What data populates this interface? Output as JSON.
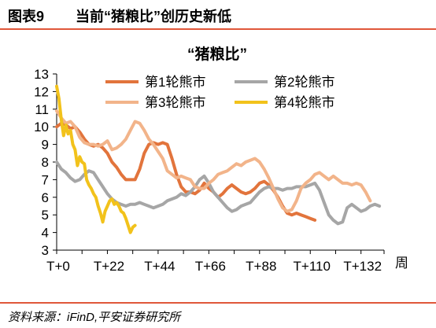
{
  "header": {
    "figure_number": "图表9",
    "title": "当前“猪粮比”创历史新低"
  },
  "footer": {
    "source": "资料来源：iFinD,平安证券研究所"
  },
  "chart_data": {
    "type": "line",
    "title": "“猪粮比”",
    "xlabel": "周",
    "ylabel": "",
    "ylim": [
      3,
      13
    ],
    "xlim": [
      0,
      142
    ],
    "yticks": [
      3,
      4,
      5,
      6,
      7,
      8,
      9,
      10,
      11,
      12,
      13
    ],
    "xticks": [
      0,
      22,
      44,
      66,
      88,
      110,
      132
    ],
    "xtick_labels": [
      "T+0",
      "T+22",
      "T+44",
      "T+66",
      "T+88",
      "T+110",
      "T+132"
    ],
    "grid": false,
    "legend_position": "top",
    "series": [
      {
        "name": "第1轮熊市",
        "color": "#e2743c",
        "points": [
          [
            0,
            10.0
          ],
          [
            2,
            10.2
          ],
          [
            4,
            10.1
          ],
          [
            6,
            9.9
          ],
          [
            8,
            10.0
          ],
          [
            10,
            9.7
          ],
          [
            12,
            9.3
          ],
          [
            14,
            9.0
          ],
          [
            16,
            8.9
          ],
          [
            18,
            9.0
          ],
          [
            20,
            8.8
          ],
          [
            22,
            8.5
          ],
          [
            24,
            8.0
          ],
          [
            26,
            7.7
          ],
          [
            28,
            7.3
          ],
          [
            30,
            7.0
          ],
          [
            32,
            7.0
          ],
          [
            34,
            7.0
          ],
          [
            36,
            7.6
          ],
          [
            38,
            8.5
          ],
          [
            40,
            9.0
          ],
          [
            42,
            9.1
          ],
          [
            44,
            9.0
          ],
          [
            46,
            9.1
          ],
          [
            48,
            9.0
          ],
          [
            50,
            8.2
          ],
          [
            52,
            7.3
          ],
          [
            54,
            6.6
          ],
          [
            56,
            6.3
          ],
          [
            58,
            6.3
          ],
          [
            60,
            6.2
          ],
          [
            62,
            6.4
          ],
          [
            64,
            6.8
          ],
          [
            66,
            6.5
          ],
          [
            68,
            6.3
          ],
          [
            70,
            6.0
          ],
          [
            72,
            6.2
          ],
          [
            74,
            6.5
          ],
          [
            76,
            6.7
          ],
          [
            78,
            6.5
          ],
          [
            80,
            6.3
          ],
          [
            82,
            6.2
          ],
          [
            84,
            6.3
          ],
          [
            86,
            6.5
          ],
          [
            88,
            6.8
          ],
          [
            90,
            6.9
          ],
          [
            92,
            6.7
          ],
          [
            94,
            6.4
          ],
          [
            96,
            6.0
          ],
          [
            98,
            5.5
          ],
          [
            100,
            5.1
          ],
          [
            102,
            5.0
          ],
          [
            104,
            5.1
          ],
          [
            106,
            5.0
          ],
          [
            108,
            4.9
          ],
          [
            110,
            4.8
          ],
          [
            112,
            4.7
          ]
        ]
      },
      {
        "name": "第2轮熊市",
        "color": "#a6a6a6",
        "points": [
          [
            0,
            8.0
          ],
          [
            2,
            7.6
          ],
          [
            4,
            7.4
          ],
          [
            6,
            7.1
          ],
          [
            8,
            6.9
          ],
          [
            10,
            7.0
          ],
          [
            12,
            7.3
          ],
          [
            14,
            7.5
          ],
          [
            16,
            7.4
          ],
          [
            18,
            7.0
          ],
          [
            20,
            6.6
          ],
          [
            22,
            6.2
          ],
          [
            24,
            5.9
          ],
          [
            26,
            5.7
          ],
          [
            28,
            5.6
          ],
          [
            30,
            5.5
          ],
          [
            32,
            5.6
          ],
          [
            34,
            5.6
          ],
          [
            36,
            5.7
          ],
          [
            38,
            5.6
          ],
          [
            40,
            5.5
          ],
          [
            42,
            5.4
          ],
          [
            44,
            5.5
          ],
          [
            46,
            5.6
          ],
          [
            48,
            5.8
          ],
          [
            50,
            5.9
          ],
          [
            52,
            6.0
          ],
          [
            54,
            6.2
          ],
          [
            56,
            6.1
          ],
          [
            58,
            6.3
          ],
          [
            60,
            6.6
          ],
          [
            62,
            7.0
          ],
          [
            64,
            7.2
          ],
          [
            66,
            6.8
          ],
          [
            68,
            6.3
          ],
          [
            70,
            6.0
          ],
          [
            72,
            5.7
          ],
          [
            74,
            5.4
          ],
          [
            76,
            5.2
          ],
          [
            78,
            5.3
          ],
          [
            80,
            5.5
          ],
          [
            82,
            5.6
          ],
          [
            84,
            5.7
          ],
          [
            86,
            6.0
          ],
          [
            88,
            6.3
          ],
          [
            90,
            6.5
          ],
          [
            92,
            6.6
          ],
          [
            94,
            6.5
          ],
          [
            96,
            6.5
          ],
          [
            98,
            6.4
          ],
          [
            100,
            6.5
          ],
          [
            102,
            6.5
          ],
          [
            104,
            6.6
          ],
          [
            106,
            6.6
          ],
          [
            108,
            6.6
          ],
          [
            110,
            6.7
          ],
          [
            112,
            6.8
          ],
          [
            114,
            6.4
          ],
          [
            116,
            5.7
          ],
          [
            118,
            5.0
          ],
          [
            120,
            4.7
          ],
          [
            122,
            4.5
          ],
          [
            124,
            4.6
          ],
          [
            126,
            5.4
          ],
          [
            128,
            5.6
          ],
          [
            130,
            5.4
          ],
          [
            132,
            5.2
          ],
          [
            134,
            5.3
          ],
          [
            136,
            5.5
          ],
          [
            138,
            5.6
          ],
          [
            140,
            5.5
          ]
        ]
      },
      {
        "name": "第3轮熊市",
        "color": "#f2b48a",
        "points": [
          [
            0,
            10.9
          ],
          [
            2,
            10.5
          ],
          [
            4,
            10.2
          ],
          [
            6,
            10.3
          ],
          [
            8,
            10.0
          ],
          [
            10,
            9.4
          ],
          [
            12,
            9.1
          ],
          [
            14,
            9.0
          ],
          [
            16,
            9.0
          ],
          [
            18,
            8.9
          ],
          [
            20,
            9.0
          ],
          [
            22,
            9.2
          ],
          [
            24,
            8.7
          ],
          [
            26,
            8.8
          ],
          [
            28,
            9.0
          ],
          [
            30,
            9.3
          ],
          [
            32,
            9.8
          ],
          [
            34,
            10.3
          ],
          [
            36,
            10.2
          ],
          [
            38,
            9.8
          ],
          [
            40,
            9.3
          ],
          [
            42,
            9.0
          ],
          [
            44,
            8.6
          ],
          [
            46,
            8.2
          ],
          [
            48,
            7.5
          ],
          [
            50,
            7.3
          ],
          [
            52,
            7.1
          ],
          [
            54,
            7.2
          ],
          [
            56,
            7.1
          ],
          [
            58,
            7.0
          ],
          [
            60,
            6.6
          ],
          [
            62,
            6.5
          ],
          [
            64,
            6.5
          ],
          [
            66,
            6.8
          ],
          [
            68,
            7.0
          ],
          [
            70,
            7.3
          ],
          [
            72,
            7.4
          ],
          [
            74,
            7.5
          ],
          [
            76,
            7.7
          ],
          [
            78,
            7.9
          ],
          [
            80,
            7.8
          ],
          [
            82,
            8.0
          ],
          [
            84,
            8.1
          ],
          [
            86,
            8.2
          ],
          [
            88,
            8.0
          ],
          [
            90,
            7.6
          ],
          [
            92,
            7.1
          ],
          [
            94,
            6.5
          ],
          [
            96,
            5.9
          ],
          [
            98,
            5.4
          ],
          [
            100,
            5.2
          ],
          [
            102,
            5.3
          ],
          [
            104,
            5.8
          ],
          [
            106,
            6.5
          ],
          [
            108,
            6.8
          ],
          [
            110,
            7.0
          ],
          [
            112,
            7.3
          ],
          [
            114,
            7.4
          ],
          [
            116,
            7.2
          ],
          [
            118,
            7.0
          ],
          [
            120,
            7.2
          ],
          [
            122,
            7.0
          ],
          [
            124,
            6.8
          ],
          [
            126,
            6.8
          ],
          [
            128,
            6.7
          ],
          [
            130,
            6.8
          ],
          [
            132,
            6.7
          ],
          [
            134,
            6.3
          ],
          [
            136,
            5.8
          ]
        ]
      },
      {
        "name": "第4轮熊市",
        "color": "#f2c21b",
        "points": [
          [
            0,
            12.3
          ],
          [
            1,
            11.6
          ],
          [
            2,
            10.4
          ],
          [
            3,
            9.5
          ],
          [
            4,
            10.1
          ],
          [
            5,
            9.6
          ],
          [
            6,
            9.8
          ],
          [
            7,
            9.0
          ],
          [
            8,
            8.7
          ],
          [
            9,
            7.8
          ],
          [
            10,
            8.3
          ],
          [
            11,
            8.0
          ],
          [
            12,
            7.9
          ],
          [
            13,
            7.0
          ],
          [
            14,
            6.7
          ],
          [
            15,
            6.5
          ],
          [
            16,
            6.2
          ],
          [
            17,
            6.0
          ],
          [
            18,
            5.5
          ],
          [
            19,
            5.1
          ],
          [
            20,
            4.6
          ],
          [
            21,
            5.2
          ],
          [
            22,
            5.5
          ],
          [
            23,
            5.8
          ],
          [
            24,
            5.9
          ],
          [
            25,
            5.6
          ],
          [
            26,
            5.7
          ],
          [
            27,
            5.5
          ],
          [
            28,
            5.2
          ],
          [
            29,
            5.1
          ],
          [
            30,
            4.8
          ],
          [
            31,
            4.4
          ],
          [
            32,
            4.0
          ],
          [
            33,
            4.3
          ],
          [
            34,
            4.4
          ]
        ]
      }
    ]
  }
}
